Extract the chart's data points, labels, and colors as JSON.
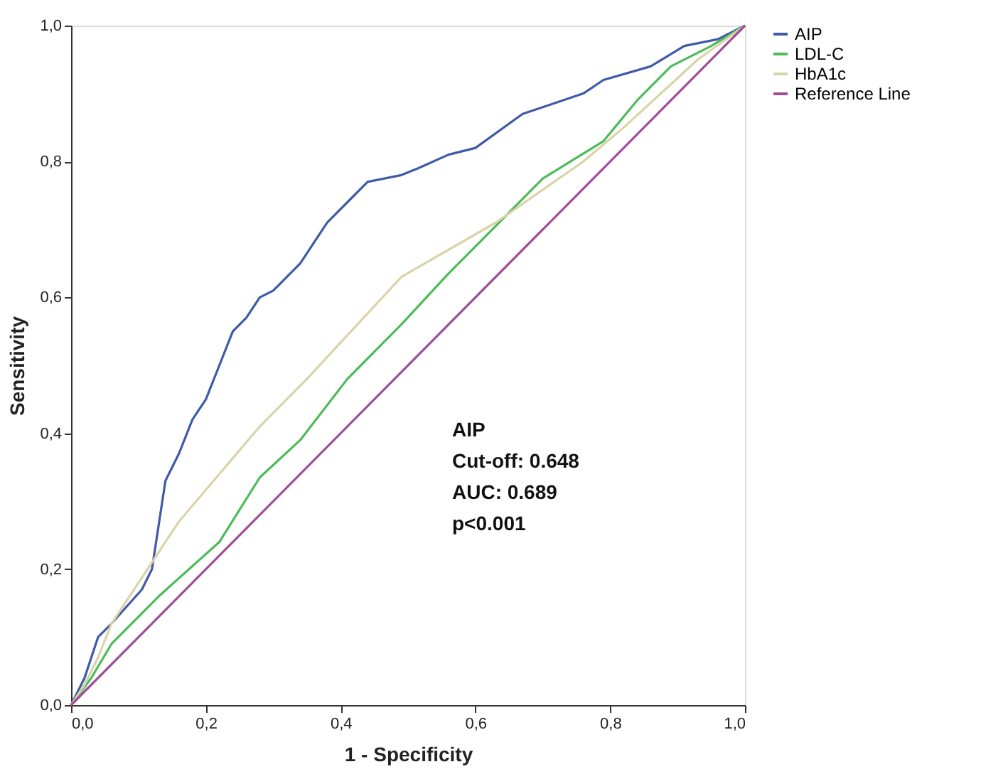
{
  "chart_data": {
    "type": "line",
    "xlabel": "1 - Specificity",
    "ylabel": "Sensitivity",
    "xlim": [
      0,
      1
    ],
    "ylim": [
      0,
      1
    ],
    "xticks": [
      {
        "value": 0,
        "label": "0,0"
      },
      {
        "value": 0.2,
        "label": "0,2"
      },
      {
        "value": 0.4,
        "label": "0,4"
      },
      {
        "value": 0.6,
        "label": "0,6"
      },
      {
        "value": 0.8,
        "label": "0,8"
      },
      {
        "value": 1,
        "label": "1,0"
      }
    ],
    "yticks": [
      {
        "value": 0,
        "label": "0,0"
      },
      {
        "value": 0.2,
        "label": "0,2"
      },
      {
        "value": 0.4,
        "label": "0,4"
      },
      {
        "value": 0.6,
        "label": "0,6"
      },
      {
        "value": 0.8,
        "label": "0,8"
      },
      {
        "value": 1,
        "label": "1,0"
      }
    ],
    "grid": false,
    "legend": "right",
    "marker": "none",
    "line_style": "solid",
    "series": [
      {
        "name": "AIP",
        "color": "#3f5aa8",
        "x": [
          0,
          0.02,
          0.04,
          0.06,
          0.105,
          0.12,
          0.14,
          0.16,
          0.18,
          0.2,
          0.22,
          0.24,
          0.26,
          0.28,
          0.3,
          0.34,
          0.38,
          0.42,
          0.44,
          0.49,
          0.515,
          0.56,
          0.6,
          0.67,
          0.7,
          0.76,
          0.79,
          0.86,
          0.91,
          0.96,
          1
        ],
        "values": [
          0,
          0.04,
          0.1,
          0.12,
          0.17,
          0.2,
          0.33,
          0.37,
          0.42,
          0.45,
          0.5,
          0.55,
          0.57,
          0.6,
          0.61,
          0.65,
          0.71,
          0.75,
          0.77,
          0.78,
          0.79,
          0.81,
          0.82,
          0.87,
          0.88,
          0.9,
          0.92,
          0.94,
          0.97,
          0.98,
          1
        ]
      },
      {
        "name": "LDL-C",
        "color": "#4cbb5a",
        "x": [
          0,
          0.03,
          0.06,
          0.13,
          0.22,
          0.28,
          0.34,
          0.41,
          0.49,
          0.56,
          0.63,
          0.7,
          0.79,
          0.84,
          0.89,
          0.95,
          1
        ],
        "values": [
          0,
          0.04,
          0.09,
          0.16,
          0.24,
          0.335,
          0.39,
          0.48,
          0.56,
          0.635,
          0.705,
          0.775,
          0.83,
          0.89,
          0.94,
          0.97,
          1
        ]
      },
      {
        "name": "HbA1c",
        "color": "#d9d4a8",
        "x": [
          0,
          0.02,
          0.04,
          0.06,
          0.16,
          0.28,
          0.35,
          0.49,
          0.63,
          0.76,
          0.82,
          0.93,
          1
        ],
        "values": [
          0,
          0.03,
          0.07,
          0.12,
          0.27,
          0.41,
          0.48,
          0.63,
          0.71,
          0.8,
          0.85,
          0.95,
          1
        ]
      },
      {
        "name": "Reference Line",
        "color": "#9e4d9a",
        "x": [
          0,
          1
        ],
        "values": [
          0,
          1
        ]
      }
    ],
    "annotations": [
      "AIP",
      "Cut-off: 0.648",
      "AUC: 0.689",
      "p<0.001"
    ]
  }
}
